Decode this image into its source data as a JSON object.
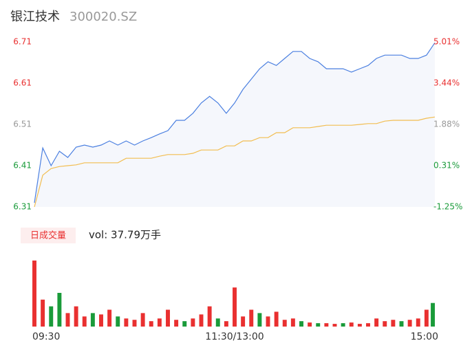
{
  "chart_data": {
    "type": "intraday",
    "title": "银江技术",
    "subtitle": "300020.SZ",
    "x": [
      0,
      5,
      10,
      15,
      20,
      25,
      30,
      35,
      40,
      45,
      50,
      55,
      60,
      65,
      70,
      75,
      80,
      85,
      90,
      95,
      100,
      105,
      110,
      115,
      120,
      125,
      130,
      135,
      140,
      145,
      150,
      155,
      160,
      165,
      170,
      175,
      180,
      185,
      190,
      195,
      200,
      205,
      210,
      215,
      220,
      225,
      230,
      235,
      240
    ],
    "xlim": [
      0,
      240
    ],
    "xticks": [
      {
        "value": 0,
        "label": "09:30"
      },
      {
        "value": 120,
        "label": "11:30/13:00"
      },
      {
        "value": 240,
        "label": "15:00"
      }
    ],
    "series": [
      {
        "name": "price",
        "color": "#4a7fe0",
        "values": [
          6.32,
          6.453,
          6.41,
          6.445,
          6.43,
          6.455,
          6.46,
          6.455,
          6.46,
          6.47,
          6.46,
          6.47,
          6.46,
          6.47,
          6.478,
          6.487,
          6.495,
          6.52,
          6.52,
          6.537,
          6.562,
          6.578,
          6.562,
          6.537,
          6.562,
          6.595,
          6.62,
          6.645,
          6.662,
          6.653,
          6.67,
          6.687,
          6.687,
          6.67,
          6.662,
          6.645,
          6.645,
          6.645,
          6.637,
          6.645,
          6.653,
          6.67,
          6.678,
          6.678,
          6.678,
          6.67,
          6.67,
          6.678,
          6.708
        ]
      },
      {
        "name": "average",
        "color": "#f2bd4f",
        "values": [
          6.31,
          6.387,
          6.403,
          6.408,
          6.41,
          6.412,
          6.417,
          6.417,
          6.417,
          6.417,
          6.417,
          6.428,
          6.428,
          6.428,
          6.428,
          6.433,
          6.437,
          6.437,
          6.437,
          6.44,
          6.448,
          6.448,
          6.448,
          6.458,
          6.458,
          6.47,
          6.47,
          6.478,
          6.478,
          6.49,
          6.49,
          6.502,
          6.502,
          6.502,
          6.505,
          6.508,
          6.508,
          6.508,
          6.508,
          6.51,
          6.512,
          6.512,
          6.518,
          6.52,
          6.52,
          6.52,
          6.52,
          6.525,
          6.528
        ]
      }
    ],
    "ylim": [
      6.31,
      6.71
    ],
    "yticks": [
      6.71,
      6.61,
      6.51,
      6.41,
      6.31
    ],
    "ytick_colors": [
      "#e93030",
      "#e93030",
      "#999999",
      "#1a9b3a",
      "#1a9b3a"
    ],
    "y2lim": [
      -1.25,
      5.01
    ],
    "y2ticks": [
      {
        "value": 5.01,
        "label": "5.01%"
      },
      {
        "value": 3.44,
        "label": "3.44%"
      },
      {
        "value": 1.88,
        "label": "1.88%"
      },
      {
        "value": 0.31,
        "label": "0.31%"
      },
      {
        "value": -1.25,
        "label": "-1.25%"
      }
    ],
    "y2tick_colors": [
      "#e93030",
      "#e93030",
      "#999999",
      "#1a9b3a",
      "#1a9b3a"
    ],
    "area_color": "#f5f7fc",
    "volume": {
      "badge": "日成交量",
      "label": "vol: 37.79万手",
      "vlim": [
        0,
        100
      ],
      "values": [
        98,
        40,
        30,
        50,
        20,
        30,
        15,
        20,
        18,
        25,
        15,
        12,
        10,
        20,
        8,
        12,
        25,
        10,
        8,
        12,
        18,
        30,
        12,
        8,
        58,
        15,
        25,
        20,
        15,
        22,
        10,
        12,
        8,
        6,
        5,
        5,
        4,
        5,
        6,
        4,
        5,
        12,
        8,
        10,
        8,
        10,
        12,
        25,
        35
      ],
      "colors": [
        "#e93030",
        "#e93030",
        "#1a9b3a",
        "#1a9b3a",
        "#e93030",
        "#e93030",
        "#e93030",
        "#1a9b3a",
        "#e93030",
        "#e93030",
        "#1a9b3a",
        "#e93030",
        "#e93030",
        "#e93030",
        "#e93030",
        "#e93030",
        "#e93030",
        "#e93030",
        "#1a9b3a",
        "#e93030",
        "#e93030",
        "#e93030",
        "#1a9b3a",
        "#e93030",
        "#e93030",
        "#e93030",
        "#e93030",
        "#1a9b3a",
        "#e93030",
        "#e93030",
        "#e93030",
        "#e93030",
        "#1a9b3a",
        "#e93030",
        "#1a9b3a",
        "#e93030",
        "#e93030",
        "#1a9b3a",
        "#e93030",
        "#e93030",
        "#e93030",
        "#e93030",
        "#e93030",
        "#e93030",
        "#1a9b3a",
        "#e93030",
        "#e93030",
        "#e93030",
        "#1a9b3a"
      ]
    }
  }
}
